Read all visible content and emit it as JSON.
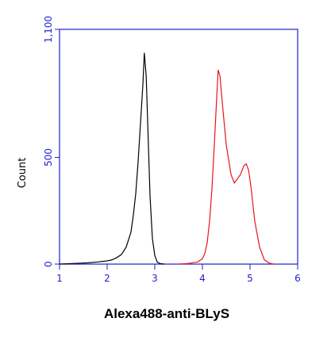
{
  "chart_data": {
    "type": "line",
    "xlabel": "Alexa488-anti-BLyS",
    "ylabel": "Count",
    "xlim": [
      1,
      6
    ],
    "xticks": [
      1,
      2,
      3,
      4,
      5,
      6
    ],
    "ylim": [
      0,
      1100
    ],
    "yticks": [
      0,
      500,
      {
        "value": 1100,
        "label": "1,100"
      }
    ],
    "tick_label_color": "#1f1fd0",
    "series": [
      {
        "color": "#000000",
        "x": [
          1.0,
          1.2,
          1.4,
          1.6,
          1.8,
          2.0,
          2.1,
          2.2,
          2.3,
          2.4,
          2.5,
          2.55,
          2.6,
          2.65,
          2.7,
          2.75,
          2.78,
          2.82,
          2.86,
          2.9,
          2.95,
          3.0,
          3.05,
          3.1,
          3.2
        ],
        "values": [
          0,
          2,
          4,
          6,
          10,
          15,
          20,
          30,
          45,
          80,
          150,
          230,
          330,
          480,
          660,
          840,
          990,
          880,
          600,
          320,
          120,
          40,
          10,
          3,
          0
        ]
      },
      {
        "color": "#e8141c",
        "x": [
          3.5,
          3.7,
          3.9,
          4.0,
          4.05,
          4.1,
          4.15,
          4.2,
          4.25,
          4.3,
          4.33,
          4.37,
          4.42,
          4.5,
          4.6,
          4.67,
          4.72,
          4.8,
          4.87,
          4.92,
          4.97,
          5.02,
          5.1,
          5.2,
          5.3,
          5.4,
          5.5
        ],
        "values": [
          0,
          3,
          10,
          25,
          50,
          100,
          200,
          350,
          560,
          780,
          910,
          880,
          750,
          560,
          420,
          380,
          395,
          420,
          460,
          470,
          440,
          360,
          200,
          80,
          20,
          5,
          0
        ]
      }
    ]
  }
}
